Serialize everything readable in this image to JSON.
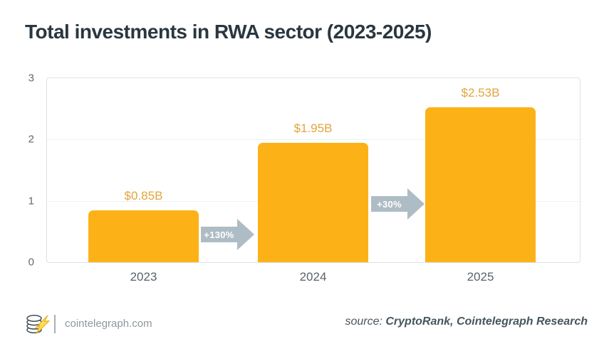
{
  "title": "Total investments in RWA sector (2023-2025)",
  "chart_data": {
    "type": "bar",
    "title": "Total investments in RWA sector (2023-2025)",
    "categories": [
      "2023",
      "2024",
      "2025"
    ],
    "values": [
      0.85,
      1.95,
      2.53
    ],
    "value_labels": [
      "$0.85B",
      "$1.95B",
      "$2.53B"
    ],
    "growth_annotations": [
      {
        "label": "+130%",
        "between": [
          "2023",
          "2024"
        ]
      },
      {
        "label": "+30%",
        "between": [
          "2024",
          "2025"
        ]
      }
    ],
    "xlabel": "",
    "ylabel": "",
    "ylim": [
      0,
      3
    ],
    "yticks": [
      0,
      1,
      2,
      3
    ],
    "grid": true,
    "legend": "none",
    "bar_color": "#fcb216",
    "value_label_color": "#e1a53e",
    "arrow_color": "#aebdc5"
  },
  "footer": {
    "site": "cointelegraph.com",
    "logo_icon": "cointelegraph-coin-stack-flash",
    "source_prefix": "source: ",
    "source_names": "CryptoRank, Cointelegraph Research"
  }
}
